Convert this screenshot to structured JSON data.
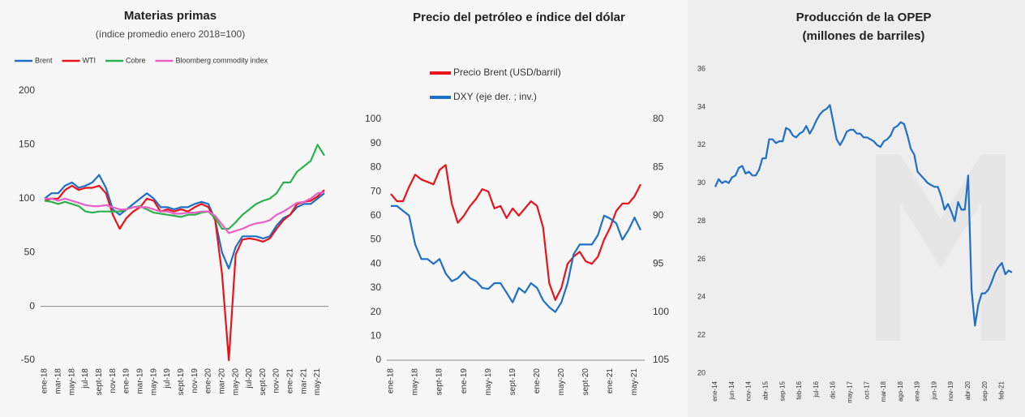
{
  "chart_data": [
    {
      "type": "line",
      "title": "Materias primas",
      "subtitle": "(índice promedio enero 2018=100)",
      "categories": [
        "ene-18",
        null,
        "mar-18",
        null,
        "may-18",
        null,
        "jul-18",
        null,
        "sept-18",
        null,
        "nov-18",
        null,
        "ene-19",
        null,
        "mar-19",
        null,
        "may-19",
        null,
        "jul-19",
        null,
        "sept-19",
        null,
        "nov-19",
        null,
        "ene-20",
        null,
        "mar-20",
        null,
        "may-20",
        null,
        "jul-20",
        null,
        "sept-20",
        null,
        "nov-20",
        null,
        "ene-21",
        null,
        "mar-21",
        null,
        "may-21",
        null
      ],
      "series": [
        {
          "name": "Brent",
          "color": "#1f6fc6",
          "values": [
            100,
            105,
            105,
            112,
            115,
            110,
            112,
            115,
            122,
            110,
            90,
            85,
            90,
            95,
            100,
            105,
            100,
            92,
            92,
            90,
            92,
            92,
            95,
            97,
            95,
            80,
            50,
            35,
            55,
            65,
            65,
            65,
            63,
            65,
            75,
            82,
            85,
            92,
            95,
            95,
            100,
            105
          ]
        },
        {
          "name": "WTI",
          "color": "#e8131b",
          "values": [
            98,
            100,
            100,
            108,
            112,
            108,
            110,
            110,
            112,
            105,
            85,
            72,
            82,
            88,
            92,
            100,
            98,
            88,
            90,
            88,
            90,
            88,
            92,
            95,
            92,
            80,
            30,
            -50,
            48,
            62,
            63,
            62,
            60,
            63,
            72,
            80,
            85,
            95,
            97,
            98,
            102,
            108
          ]
        },
        {
          "name": "Cobre",
          "color": "#2bb24c",
          "values": [
            98,
            97,
            95,
            97,
            95,
            93,
            88,
            87,
            88,
            88,
            88,
            88,
            90,
            92,
            93,
            90,
            87,
            86,
            85,
            84,
            83,
            85,
            85,
            87,
            88,
            82,
            72,
            72,
            78,
            85,
            90,
            95,
            98,
            100,
            105,
            115,
            115,
            125,
            130,
            135,
            150,
            140
          ]
        },
        {
          "name": "Bloomberg commodity index",
          "color": "#ec5fc8",
          "values": [
            100,
            100,
            98,
            100,
            98,
            96,
            94,
            93,
            93,
            94,
            92,
            90,
            90,
            92,
            92,
            92,
            90,
            88,
            88,
            86,
            86,
            87,
            87,
            88,
            88,
            84,
            76,
            68,
            70,
            72,
            75,
            77,
            78,
            80,
            85,
            88,
            92,
            96,
            97,
            100,
            105,
            106
          ]
        }
      ],
      "ylim": [
        -50,
        200
      ],
      "yticks": [
        -50,
        0,
        50,
        100,
        150,
        200
      ],
      "grid": false
    },
    {
      "type": "line",
      "title": "Precio del petróleo e índice del dólar",
      "categories": [
        "ene-18",
        null,
        null,
        null,
        "may-18",
        null,
        null,
        null,
        "sept-18",
        null,
        null,
        null,
        "ene-19",
        null,
        null,
        null,
        "may-19",
        null,
        null,
        null,
        "sept-19",
        null,
        null,
        null,
        "ene-20",
        null,
        null,
        null,
        "may-20",
        null,
        null,
        null,
        "sept-20",
        null,
        null,
        null,
        "ene-21",
        null,
        null,
        null,
        "may-21",
        null
      ],
      "series": [
        {
          "name": "Precio Brent  (USD/barril)",
          "color": "#e8131b",
          "values": [
            69,
            66,
            66,
            72,
            77,
            75,
            74,
            73,
            79,
            81,
            65,
            57,
            60,
            64,
            67,
            71,
            70,
            63,
            64,
            59,
            63,
            60,
            63,
            66,
            64,
            55,
            32,
            25,
            30,
            40,
            43,
            45,
            41,
            40,
            43,
            50,
            55,
            62,
            65,
            65,
            68,
            73
          ]
        },
        {
          "name": "DXY (eje der. ; inv.)",
          "color": "#1f6fc6",
          "axis": "y2",
          "values": [
            89,
            89,
            89.5,
            90,
            93,
            94.5,
            94.5,
            95,
            94.5,
            96,
            96.8,
            96.5,
            95.8,
            96.5,
            96.8,
            97.5,
            97.6,
            97,
            97,
            98,
            99,
            97.5,
            98,
            97,
            97.5,
            98.8,
            99.5,
            100,
            99,
            97,
            94,
            93,
            93,
            93,
            92,
            90,
            90.3,
            90.8,
            92.5,
            91.5,
            90.2,
            91.5
          ]
        }
      ],
      "ylim": [
        0,
        100
      ],
      "yticks": [
        0,
        10,
        20,
        30,
        40,
        50,
        60,
        70,
        80,
        90,
        100
      ],
      "y2lim": [
        105,
        80
      ],
      "y2ticks": [
        80,
        85,
        90,
        95,
        100,
        105
      ],
      "grid": false
    },
    {
      "type": "line",
      "title": "Producción de la OPEP",
      "subtitle": "(millones de barriles)",
      "categories": [
        "ene-14",
        null,
        null,
        null,
        null,
        "jun-14",
        null,
        null,
        null,
        null,
        "nov-14",
        null,
        null,
        null,
        null,
        "abr-15",
        null,
        null,
        null,
        null,
        "sep-15",
        null,
        null,
        null,
        null,
        "feb-16",
        null,
        null,
        null,
        null,
        "jul-16",
        null,
        null,
        null,
        null,
        "dic-16",
        null,
        null,
        null,
        null,
        "may-17",
        null,
        null,
        null,
        null,
        "oct-17",
        null,
        null,
        null,
        null,
        "mar-18",
        null,
        null,
        null,
        null,
        "ago-18",
        null,
        null,
        null,
        null,
        "ene-19",
        null,
        null,
        null,
        null,
        "jun-19",
        null,
        null,
        null,
        null,
        "nov-19",
        null,
        null,
        null,
        null,
        "abr-20",
        null,
        null,
        null,
        null,
        "sep-20",
        null,
        null,
        null,
        null,
        "feb-21",
        null,
        null,
        null
      ],
      "color": "#1f6fc6",
      "values": [
        29.8,
        30.2,
        30.0,
        30.1,
        30.0,
        30.3,
        30.4,
        30.8,
        30.9,
        30.5,
        30.6,
        30.4,
        30.4,
        30.7,
        31.3,
        31.3,
        32.3,
        32.3,
        32.1,
        32.2,
        32.2,
        32.9,
        32.8,
        32.5,
        32.4,
        32.6,
        32.7,
        33.0,
        32.6,
        32.9,
        33.3,
        33.6,
        33.8,
        33.9,
        34.1,
        33.2,
        32.3,
        32.0,
        32.3,
        32.7,
        32.8,
        32.8,
        32.6,
        32.6,
        32.4,
        32.4,
        32.3,
        32.2,
        32.0,
        31.9,
        32.2,
        32.3,
        32.5,
        32.9,
        33.0,
        33.2,
        33.1,
        32.5,
        31.8,
        31.5,
        30.6,
        30.4,
        30.2,
        30.0,
        29.9,
        29.8,
        29.8,
        29.3,
        28.6,
        28.9,
        28.5,
        28.0,
        29.0,
        28.6,
        28.6,
        30.4,
        24.4,
        22.5,
        23.6,
        24.2,
        24.2,
        24.4,
        24.8,
        25.3,
        25.6,
        25.8,
        25.2,
        25.4,
        25.3
      ],
      "ylim": [
        20,
        36
      ],
      "yticks": [
        20,
        22,
        24,
        26,
        28,
        30,
        32,
        34,
        36
      ],
      "grid": false
    }
  ]
}
